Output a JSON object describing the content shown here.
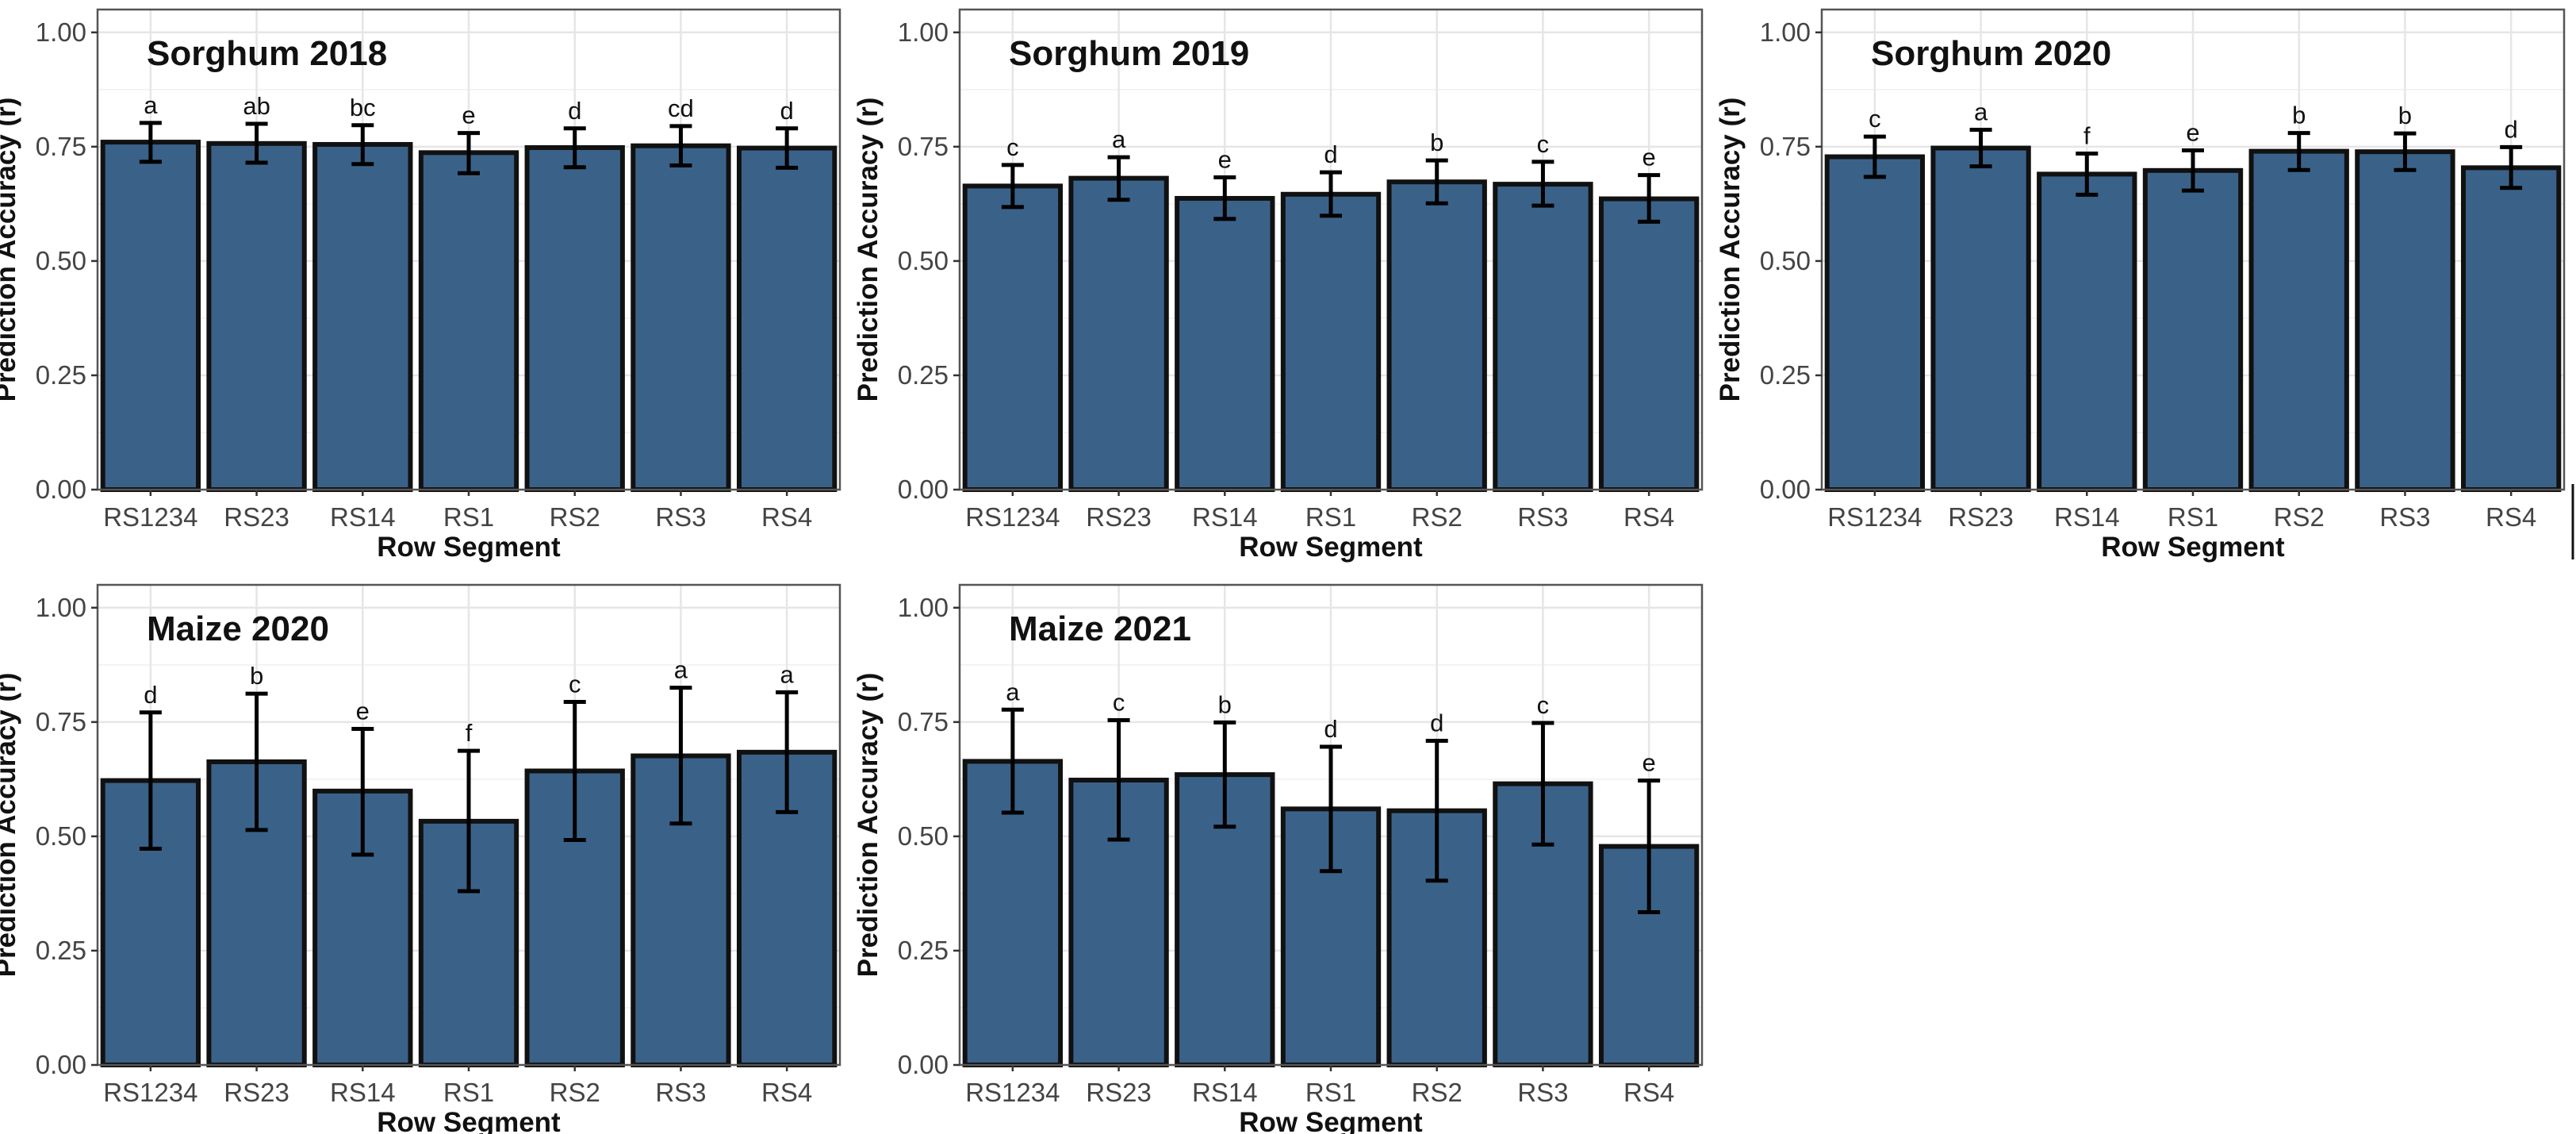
{
  "colors": {
    "bar_fill": "#3a6289",
    "bar_stroke": "#111111",
    "grid": "#e6e6e6",
    "panel_border": "#555555",
    "text": "#111111",
    "tick_text": "#444444"
  },
  "shared": {
    "xlabel": "Row Segment",
    "ylabel": "Prediction Accuracy (r)",
    "ylim": [
      0,
      1.05
    ],
    "yticks": [
      "0.00",
      "0.25",
      "0.50",
      "0.75",
      "1.00"
    ]
  },
  "chart_data": [
    {
      "type": "bar",
      "title": "Sorghum 2018",
      "xlabel": "Row Segment",
      "ylabel": "Prediction Accuracy (r)",
      "ylim": [
        0,
        1.05
      ],
      "categories": [
        "RS1234",
        "RS23",
        "RS14",
        "RS1",
        "RS2",
        "RS3",
        "RS4"
      ],
      "values": [
        0.76,
        0.757,
        0.755,
        0.737,
        0.748,
        0.752,
        0.747
      ],
      "err_low": [
        0.717,
        0.715,
        0.712,
        0.692,
        0.705,
        0.709,
        0.704
      ],
      "err_high": [
        0.802,
        0.8,
        0.797,
        0.78,
        0.79,
        0.795,
        0.79
      ],
      "labels": [
        "a",
        "ab",
        "bc",
        "e",
        "d",
        "cd",
        "d"
      ]
    },
    {
      "type": "bar",
      "title": "Sorghum 2019",
      "xlabel": "Row Segment",
      "ylabel": "Prediction Accuracy (r)",
      "ylim": [
        0,
        1.05
      ],
      "categories": [
        "RS1234",
        "RS23",
        "RS14",
        "RS1",
        "RS2",
        "RS3",
        "RS4"
      ],
      "values": [
        0.664,
        0.681,
        0.637,
        0.646,
        0.673,
        0.668,
        0.636
      ],
      "err_low": [
        0.618,
        0.634,
        0.592,
        0.599,
        0.626,
        0.621,
        0.586
      ],
      "err_high": [
        0.71,
        0.727,
        0.683,
        0.694,
        0.72,
        0.717,
        0.688
      ],
      "labels": [
        "c",
        "a",
        "e",
        "d",
        "b",
        "c",
        "e"
      ]
    },
    {
      "type": "bar",
      "title": "Sorghum 2020",
      "xlabel": "Row Segment",
      "ylabel": "Prediction Accuracy (r)",
      "ylim": [
        0,
        1.05
      ],
      "categories": [
        "RS1234",
        "RS23",
        "RS14",
        "RS1",
        "RS2",
        "RS3",
        "RS4"
      ],
      "values": [
        0.728,
        0.747,
        0.69,
        0.698,
        0.74,
        0.739,
        0.704
      ],
      "err_low": [
        0.684,
        0.707,
        0.645,
        0.654,
        0.699,
        0.699,
        0.66
      ],
      "err_high": [
        0.772,
        0.787,
        0.735,
        0.742,
        0.78,
        0.779,
        0.749
      ],
      "labels": [
        "c",
        "a",
        "f",
        "e",
        "b",
        "b",
        "d"
      ]
    },
    {
      "type": "bar",
      "title": "Maize 2020",
      "xlabel": "Row Segment",
      "ylabel": "Prediction Accuracy (r)",
      "ylim": [
        0,
        1.05
      ],
      "categories": [
        "RS1234",
        "RS23",
        "RS14",
        "RS1",
        "RS2",
        "RS3",
        "RS4"
      ],
      "values": [
        0.622,
        0.663,
        0.599,
        0.533,
        0.643,
        0.676,
        0.684
      ],
      "err_low": [
        0.473,
        0.514,
        0.46,
        0.38,
        0.492,
        0.528,
        0.553
      ],
      "err_high": [
        0.771,
        0.812,
        0.735,
        0.687,
        0.794,
        0.825,
        0.815
      ],
      "labels": [
        "d",
        "b",
        "e",
        "f",
        "c",
        "a",
        "a"
      ]
    },
    {
      "type": "bar",
      "title": "Maize 2021",
      "xlabel": "Row Segment",
      "ylabel": "Prediction Accuracy (r)",
      "ylim": [
        0,
        1.05
      ],
      "categories": [
        "RS1234",
        "RS23",
        "RS14",
        "RS1",
        "RS2",
        "RS3",
        "RS4"
      ],
      "values": [
        0.664,
        0.623,
        0.635,
        0.56,
        0.556,
        0.615,
        0.478
      ],
      "err_low": [
        0.552,
        0.493,
        0.521,
        0.424,
        0.403,
        0.482,
        0.334
      ],
      "err_high": [
        0.777,
        0.754,
        0.749,
        0.696,
        0.709,
        0.748,
        0.622
      ],
      "labels": [
        "a",
        "c",
        "b",
        "d",
        "d",
        "c",
        "e"
      ]
    }
  ]
}
